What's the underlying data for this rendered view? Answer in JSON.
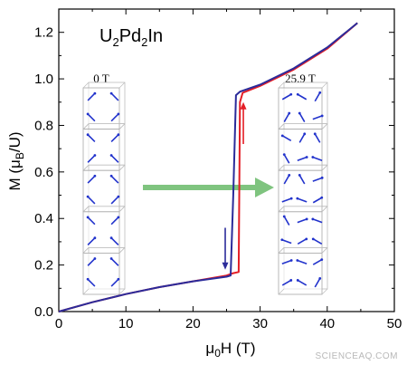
{
  "chart_data": {
    "type": "line",
    "title": "",
    "compound": {
      "base": "U",
      "sub1": "2",
      "mid": "Pd",
      "sub2": "2",
      "tail": "In"
    },
    "xlabel": {
      "prefix": "μ",
      "sub": "0",
      "suffix": "H (T)"
    },
    "ylabel": {
      "prefix": "M (μ",
      "sub": "B",
      "suffix": "/U)"
    },
    "xlim": [
      0,
      50
    ],
    "ylim": [
      0.0,
      1.3
    ],
    "x_ticks": [
      0,
      10,
      20,
      30,
      40,
      50
    ],
    "y_ticks": [
      0.0,
      0.2,
      0.4,
      0.6,
      0.8,
      1.0,
      1.2
    ],
    "x_tick_labels": [
      "0",
      "10",
      "20",
      "30",
      "40",
      "50"
    ],
    "y_tick_labels": [
      "0.0",
      "0.2",
      "0.4",
      "0.6",
      "0.8",
      "1.0",
      "1.2"
    ],
    "grid": false,
    "series": [
      {
        "color": "#e41e26",
        "x": [
          0,
          5,
          10,
          15,
          20,
          25,
          26.0,
          26.8,
          27.0,
          27.4,
          30,
          35,
          40,
          44.5
        ],
        "y": [
          0.0,
          0.04,
          0.075,
          0.105,
          0.13,
          0.155,
          0.165,
          0.17,
          0.9,
          0.94,
          0.97,
          1.04,
          1.13,
          1.24
        ]
      },
      {
        "color": "#2b2b9a",
        "x": [
          0,
          5,
          10,
          15,
          20,
          25,
          25.6,
          26.0,
          26.4,
          27.0,
          30,
          35,
          40,
          44.5
        ],
        "y": [
          0.0,
          0.04,
          0.075,
          0.105,
          0.13,
          0.15,
          0.155,
          0.5,
          0.93,
          0.945,
          0.975,
          1.045,
          1.135,
          1.24
        ]
      }
    ],
    "arrows": [
      {
        "color": "#e41e26",
        "x": 27.5,
        "y_from": 0.72,
        "y_to": 0.9
      },
      {
        "color": "#2b2b9a",
        "x": 24.8,
        "y_from": 0.36,
        "y_to": 0.18
      }
    ],
    "insets": [
      {
        "label": "0 T"
      },
      {
        "label": "25.9 T"
      }
    ],
    "transition_arrow_color": "#7fc47f",
    "watermark": "SCIENCEAQ.COM"
  }
}
